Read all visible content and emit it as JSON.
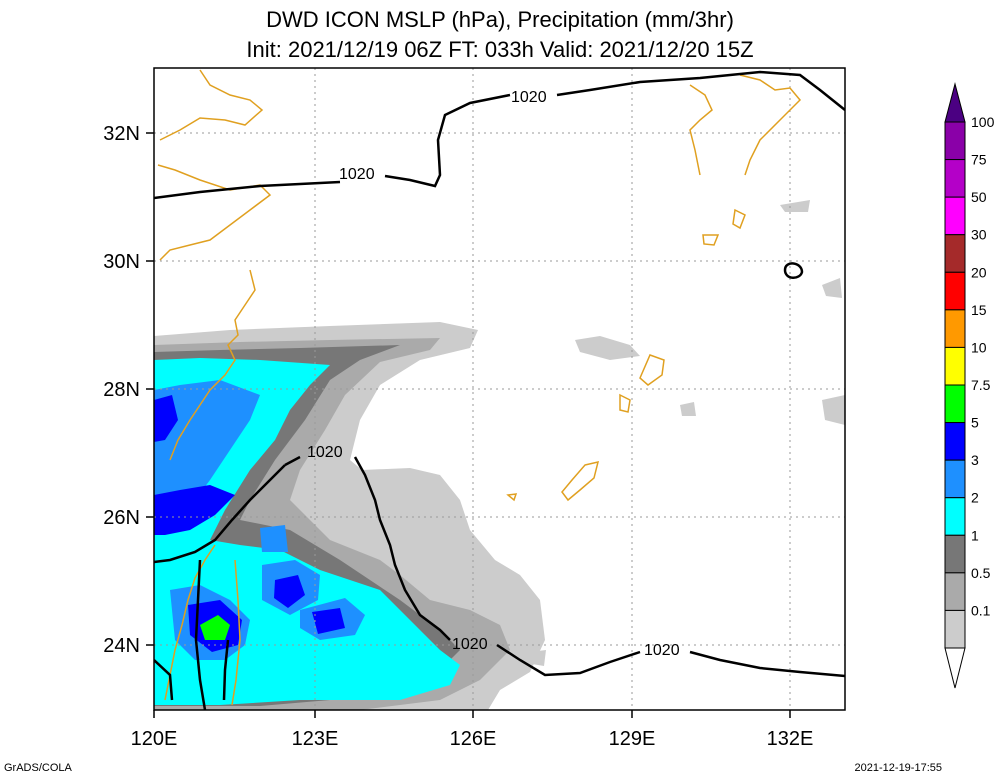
{
  "title": {
    "line1": "DWD ICON MSLP (hPa), Precipitation (mm/3hr)",
    "line2": "Init: 2021/12/19 06Z  FT: 033h  Valid: 2021/12/20 15Z"
  },
  "map": {
    "lon_ticks": [
      "120E",
      "123E",
      "126E",
      "129E",
      "132E"
    ],
    "lat_ticks": [
      "32N",
      "30N",
      "28N",
      "26N",
      "24N"
    ],
    "lon_range": [
      120,
      133
    ],
    "lat_range": [
      23,
      33
    ],
    "isobar_labels": [
      "1020",
      "1020",
      "1020",
      "1020",
      "1020"
    ],
    "isobar_value_hpa": 1020,
    "grid": "dotted"
  },
  "colorbar": {
    "levels": [
      "100",
      "75",
      "50",
      "30",
      "20",
      "15",
      "10",
      "7.5",
      "5",
      "3",
      "2",
      "1",
      "0.5",
      "0.1"
    ],
    "colors": [
      "#8a00a8",
      "#b400c8",
      "#ff00ff",
      "#a52a2a",
      "#ff0000",
      "#ff9900",
      "#ffff00",
      "#00ff00",
      "#0000ff",
      "#1e90ff",
      "#00ffff",
      "#777777",
      "#aaaaaa",
      "#cccccc"
    ],
    "top_arrow_color": "#4b0082",
    "bottom_arrow_color": "#ffffff"
  },
  "footer": {
    "left": "GrADS/COLA",
    "right": "2021-12-19-17:55"
  }
}
